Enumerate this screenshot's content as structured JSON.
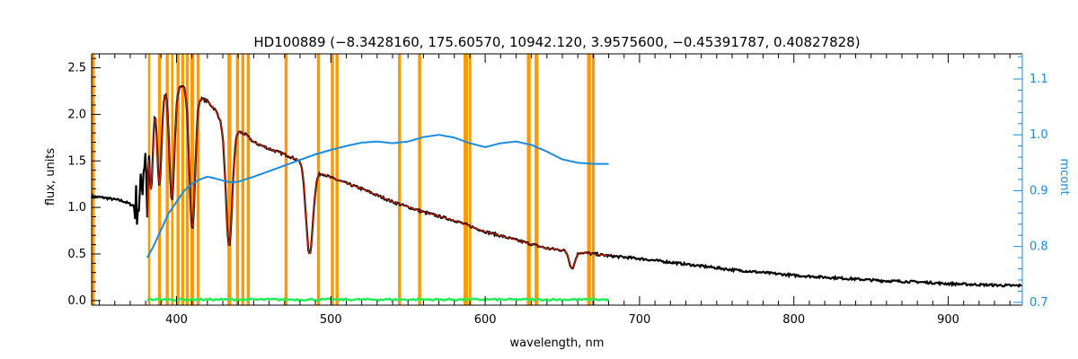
{
  "chart_data": {
    "type": "line",
    "title": "HD100889   (−8.3428160, 175.60570, 10942.120, 3.9575600, −0.45391787, 0.40827828)",
    "xlabel": "wavelength, nm",
    "ylabel": "flux, units",
    "y2label": "mcont",
    "xlim": [
      345,
      948
    ],
    "ylim": [
      -0.05,
      2.65
    ],
    "y2lim": [
      0.695,
      1.145
    ],
    "xticks": [
      400,
      500,
      600,
      700,
      800,
      900
    ],
    "yticks": [
      0.0,
      0.5,
      1.0,
      1.5,
      2.0,
      2.5
    ],
    "y2ticks": [
      0.7,
      0.8,
      0.9,
      1.0,
      1.1
    ],
    "ytick_labels": [
      "0.0",
      "0.5",
      "1.0",
      "1.5",
      "2.0",
      "2.5"
    ],
    "y2tick_labels": [
      "0.7",
      "0.8",
      "0.9",
      "1.0",
      "1.1"
    ],
    "colors": {
      "observed": "#000000",
      "model": "#cc2200",
      "continuum": "#1a8ce0",
      "residual": "#22ee55",
      "masks": "#ff9900",
      "right_axis": "#1a8ce0"
    },
    "mask_bands_nm": [
      [
        345,
        347
      ],
      [
        381.5,
        383
      ],
      [
        388,
        390
      ],
      [
        393,
        395
      ],
      [
        396.5,
        398
      ],
      [
        400,
        402
      ],
      [
        403,
        405
      ],
      [
        406,
        408
      ],
      [
        409,
        411.5
      ],
      [
        413,
        415
      ],
      [
        433,
        435.5
      ],
      [
        438.5,
        440.5
      ],
      [
        442,
        444
      ],
      [
        445.5,
        447.5
      ],
      [
        470,
        472
      ],
      [
        491,
        493
      ],
      [
        500,
        502
      ],
      [
        503,
        505
      ],
      [
        543.5,
        545.5
      ],
      [
        556.5,
        558.5
      ],
      [
        586,
        589
      ],
      [
        589.5,
        591
      ],
      [
        627,
        629.5
      ],
      [
        632,
        634.5
      ],
      [
        666,
        668.5
      ],
      [
        669,
        671
      ]
    ],
    "observed_nodes": [
      [
        345,
        1.12
      ],
      [
        355,
        1.1
      ],
      [
        365,
        1.07
      ],
      [
        372,
        1.02
      ],
      [
        376,
        1.05
      ],
      [
        378,
        1.3
      ],
      [
        380,
        1.7
      ],
      [
        381,
        1.0
      ],
      [
        382,
        2.05
      ],
      [
        384,
        2.1
      ],
      [
        386,
        2.2
      ],
      [
        390,
        2.25
      ],
      [
        395,
        2.28
      ],
      [
        400,
        2.28
      ],
      [
        405,
        2.3
      ],
      [
        410,
        2.22
      ],
      [
        415,
        2.18
      ],
      [
        420,
        2.14
      ],
      [
        425,
        2.05
      ],
      [
        430,
        1.9
      ],
      [
        436,
        1.8
      ],
      [
        440,
        1.82
      ],
      [
        445,
        1.78
      ],
      [
        450,
        1.7
      ],
      [
        460,
        1.63
      ],
      [
        470,
        1.57
      ],
      [
        480,
        1.5
      ],
      [
        486,
        1.45
      ],
      [
        490,
        1.37
      ],
      [
        495,
        1.36
      ],
      [
        500,
        1.32
      ],
      [
        520,
        1.2
      ],
      [
        540,
        1.06
      ],
      [
        560,
        0.95
      ],
      [
        580,
        0.86
      ],
      [
        600,
        0.74
      ],
      [
        620,
        0.65
      ],
      [
        640,
        0.56
      ],
      [
        660,
        0.52
      ],
      [
        680,
        0.48
      ],
      [
        700,
        0.45
      ],
      [
        720,
        0.41
      ],
      [
        740,
        0.37
      ],
      [
        760,
        0.33
      ],
      [
        780,
        0.3
      ],
      [
        800,
        0.27
      ],
      [
        820,
        0.25
      ],
      [
        840,
        0.23
      ],
      [
        860,
        0.21
      ],
      [
        880,
        0.2
      ],
      [
        900,
        0.18
      ],
      [
        920,
        0.17
      ],
      [
        940,
        0.16
      ],
      [
        948,
        0.16
      ]
    ],
    "absorption_lines": [
      {
        "center": 383.5,
        "depth": 0.9,
        "width": 1.2
      },
      {
        "center": 388.9,
        "depth": 1.0,
        "width": 1.4
      },
      {
        "center": 397.0,
        "depth": 1.2,
        "width": 1.6
      },
      {
        "center": 410.2,
        "depth": 1.45,
        "width": 1.8
      },
      {
        "center": 434.0,
        "depth": 1.25,
        "width": 2.0
      },
      {
        "center": 486.1,
        "depth": 0.95,
        "width": 2.2
      },
      {
        "center": 656.3,
        "depth": 0.18,
        "width": 1.8
      }
    ],
    "model_range_nm": [
      381,
      680
    ],
    "continuum_nodes": [
      [
        381,
        0.78
      ],
      [
        385,
        0.8
      ],
      [
        390,
        0.83
      ],
      [
        395,
        0.86
      ],
      [
        400,
        0.88
      ],
      [
        405,
        0.9
      ],
      [
        410,
        0.912
      ],
      [
        415,
        0.92
      ],
      [
        420,
        0.925
      ],
      [
        425,
        0.922
      ],
      [
        430,
        0.918
      ],
      [
        435,
        0.915
      ],
      [
        440,
        0.916
      ],
      [
        450,
        0.925
      ],
      [
        460,
        0.935
      ],
      [
        470,
        0.945
      ],
      [
        480,
        0.955
      ],
      [
        490,
        0.965
      ],
      [
        500,
        0.973
      ],
      [
        510,
        0.98
      ],
      [
        520,
        0.986
      ],
      [
        530,
        0.988
      ],
      [
        540,
        0.985
      ],
      [
        550,
        0.988
      ],
      [
        560,
        0.996
      ],
      [
        570,
        1.0
      ],
      [
        580,
        0.995
      ],
      [
        590,
        0.985
      ],
      [
        600,
        0.978
      ],
      [
        610,
        0.985
      ],
      [
        620,
        0.988
      ],
      [
        630,
        0.982
      ],
      [
        640,
        0.97
      ],
      [
        650,
        0.956
      ],
      [
        660,
        0.95
      ],
      [
        670,
        0.948
      ],
      [
        680,
        0.948
      ]
    ],
    "residual_level": 0.01,
    "residual_range_nm": [
      381,
      680
    ]
  }
}
